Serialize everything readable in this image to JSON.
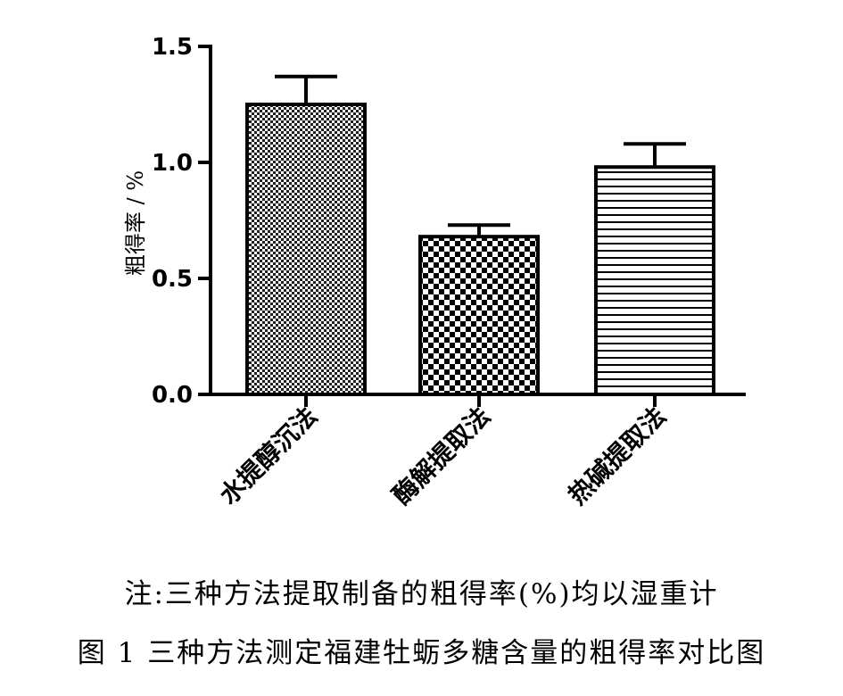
{
  "chart_data": {
    "type": "bar",
    "categories": [
      "水提醇沉法",
      "酶解提取法",
      "热碱提取法"
    ],
    "values": [
      1.25,
      0.68,
      0.98
    ],
    "errors": [
      0.12,
      0.05,
      0.1
    ],
    "ylabel": "粗得率 / %",
    "xlabel": "",
    "ylim": [
      0,
      1.5
    ],
    "yticks": [
      "0.0",
      "0.5",
      "1.0",
      "1.5"
    ],
    "ytick_values": [
      0,
      0.5,
      1.0,
      1.5
    ],
    "patterns": [
      "fine-checker",
      "coarse-checker",
      "horizontal-lines"
    ],
    "grid": false,
    "legend": "none"
  },
  "note": "注:三种方法提取制备的粗得率(%)均以湿重计",
  "figure_caption": "图 1 三种方法测定福建牡蛎多糖含量的粗得率对比图"
}
